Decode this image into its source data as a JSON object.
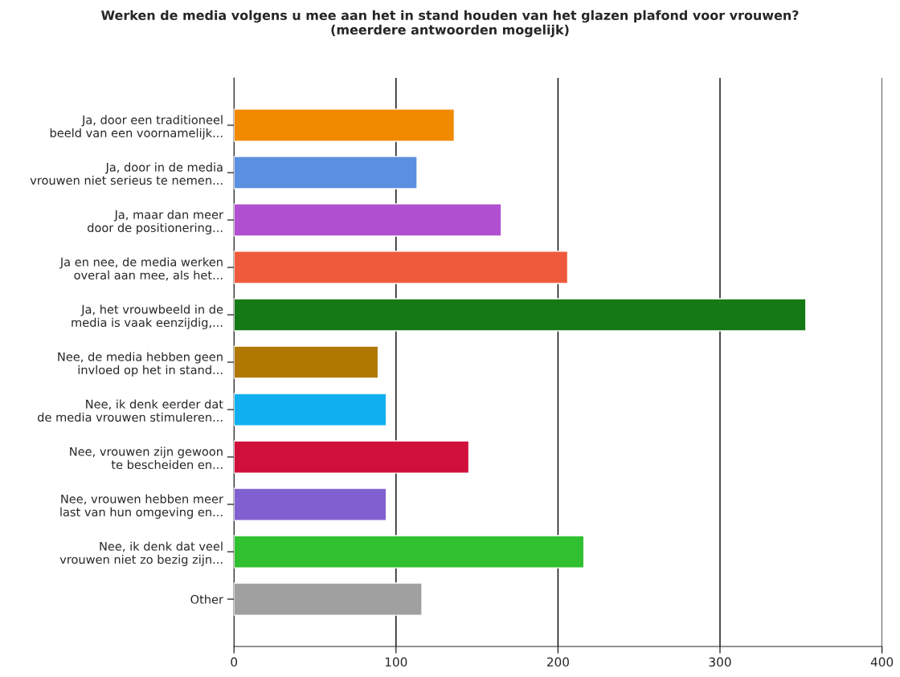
{
  "chart_data": {
    "type": "bar",
    "orientation": "horizontal",
    "title": "Werken de media volgens u mee aan het in stand houden van het glazen plafond voor vrouwen?\n(meerdere antwoorden mogelijk)",
    "categories": [
      "Ja, door een traditioneel\nbeeld van een voornamelijk...",
      "Ja, door in de media\nvrouwen niet serieus te nemen...",
      "Ja, maar dan meer\ndoor de positionering...",
      "Ja en nee, de media werken\noveral aan mee, als het...",
      "Ja, het vrouwbeeld in de\nmedia is vaak eenzijdig,...",
      "Nee, de media hebben geen\ninvloed op het in stand...",
      "Nee, ik denk eerder dat\nde media vrouwen stimuleren...",
      "Nee, vrouwen zijn gewoon\nte bescheiden en...",
      "Nee, vrouwen hebben meer\nlast van hun omgeving en...",
      "Nee, ik denk dat veel\nvrouwen niet zo bezig zijn...",
      "Other"
    ],
    "values": [
      136,
      113,
      165,
      206,
      353,
      89,
      94,
      145,
      94,
      216,
      116
    ],
    "colors": [
      "#f28a00",
      "#5b8fe0",
      "#b050d0",
      "#f05a3c",
      "#157a15",
      "#b07800",
      "#10b0f0",
      "#d0103a",
      "#8060d0",
      "#30c030",
      "#a0a0a0"
    ],
    "xlim": [
      0,
      400
    ],
    "xticks": [
      0,
      100,
      200,
      300,
      400
    ],
    "grid": "x",
    "legend": false
  }
}
